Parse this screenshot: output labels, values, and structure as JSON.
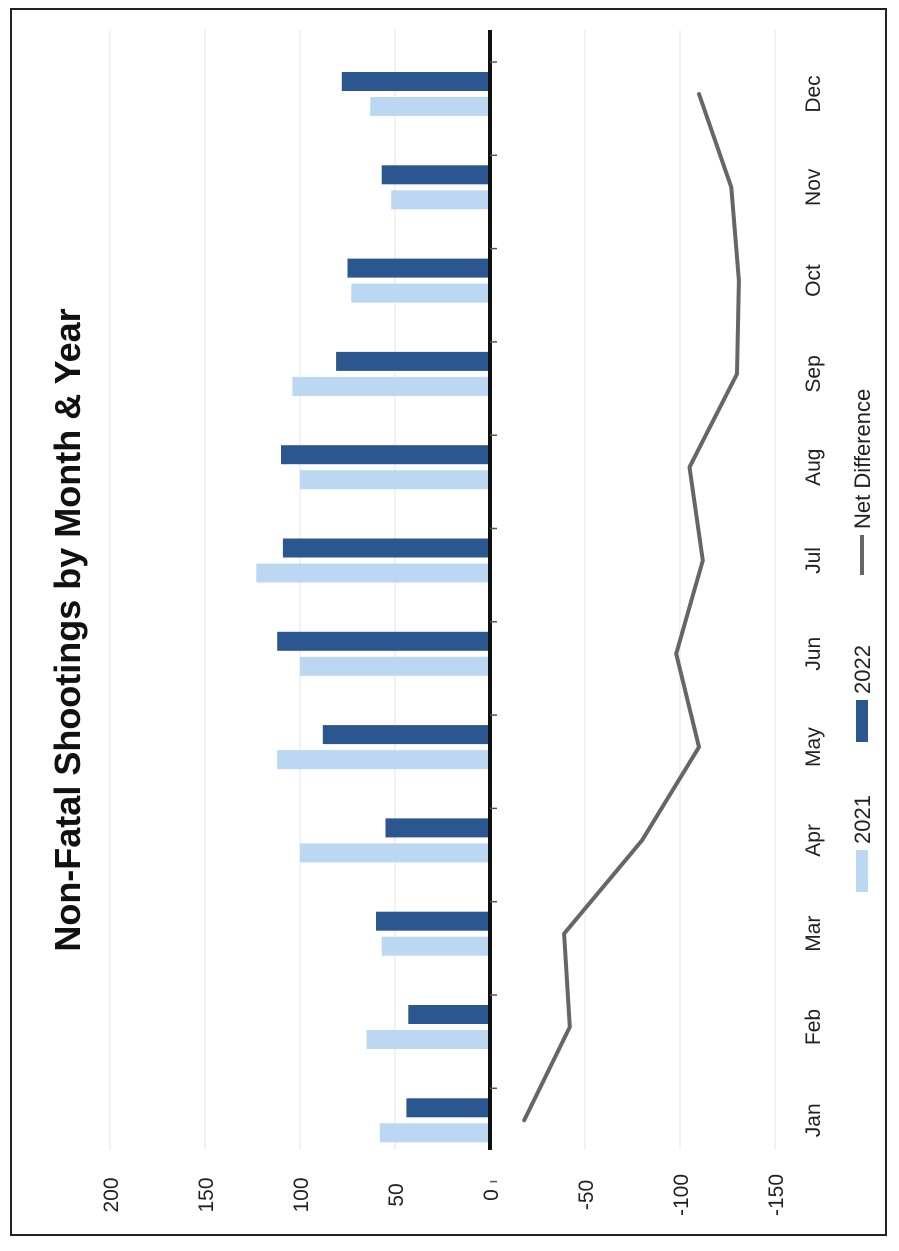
{
  "chart_data": {
    "type": "bar",
    "title": "Non-Fatal Shootings by Month & Year",
    "categories": [
      "Jan",
      "Feb",
      "Mar",
      "Apr",
      "May",
      "Jun",
      "Jul",
      "Aug",
      "Sep",
      "Oct",
      "Nov",
      "Dec"
    ],
    "series": [
      {
        "name": "2021",
        "kind": "bar",
        "color": "#bcd7f2",
        "values": [
          58,
          65,
          57,
          100,
          112,
          100,
          123,
          100,
          104,
          73,
          52,
          63
        ]
      },
      {
        "name": "2022",
        "kind": "bar",
        "color": "#2c5690",
        "values": [
          44,
          43,
          60,
          55,
          88,
          112,
          109,
          110,
          81,
          75,
          57,
          78
        ]
      },
      {
        "name": "Net Difference",
        "kind": "line",
        "color": "#666666",
        "values": [
          -18,
          -42,
          -39,
          -80,
          -110,
          -98,
          -112,
          -105,
          -130,
          -131,
          -127,
          -110
        ]
      }
    ],
    "value_axis": {
      "ticks": [
        200,
        150,
        100,
        50,
        0,
        -50,
        -100,
        -150
      ],
      "ylim": [
        -150,
        200
      ]
    },
    "grid": true,
    "legend": "bottom",
    "orientation": "rotated"
  }
}
